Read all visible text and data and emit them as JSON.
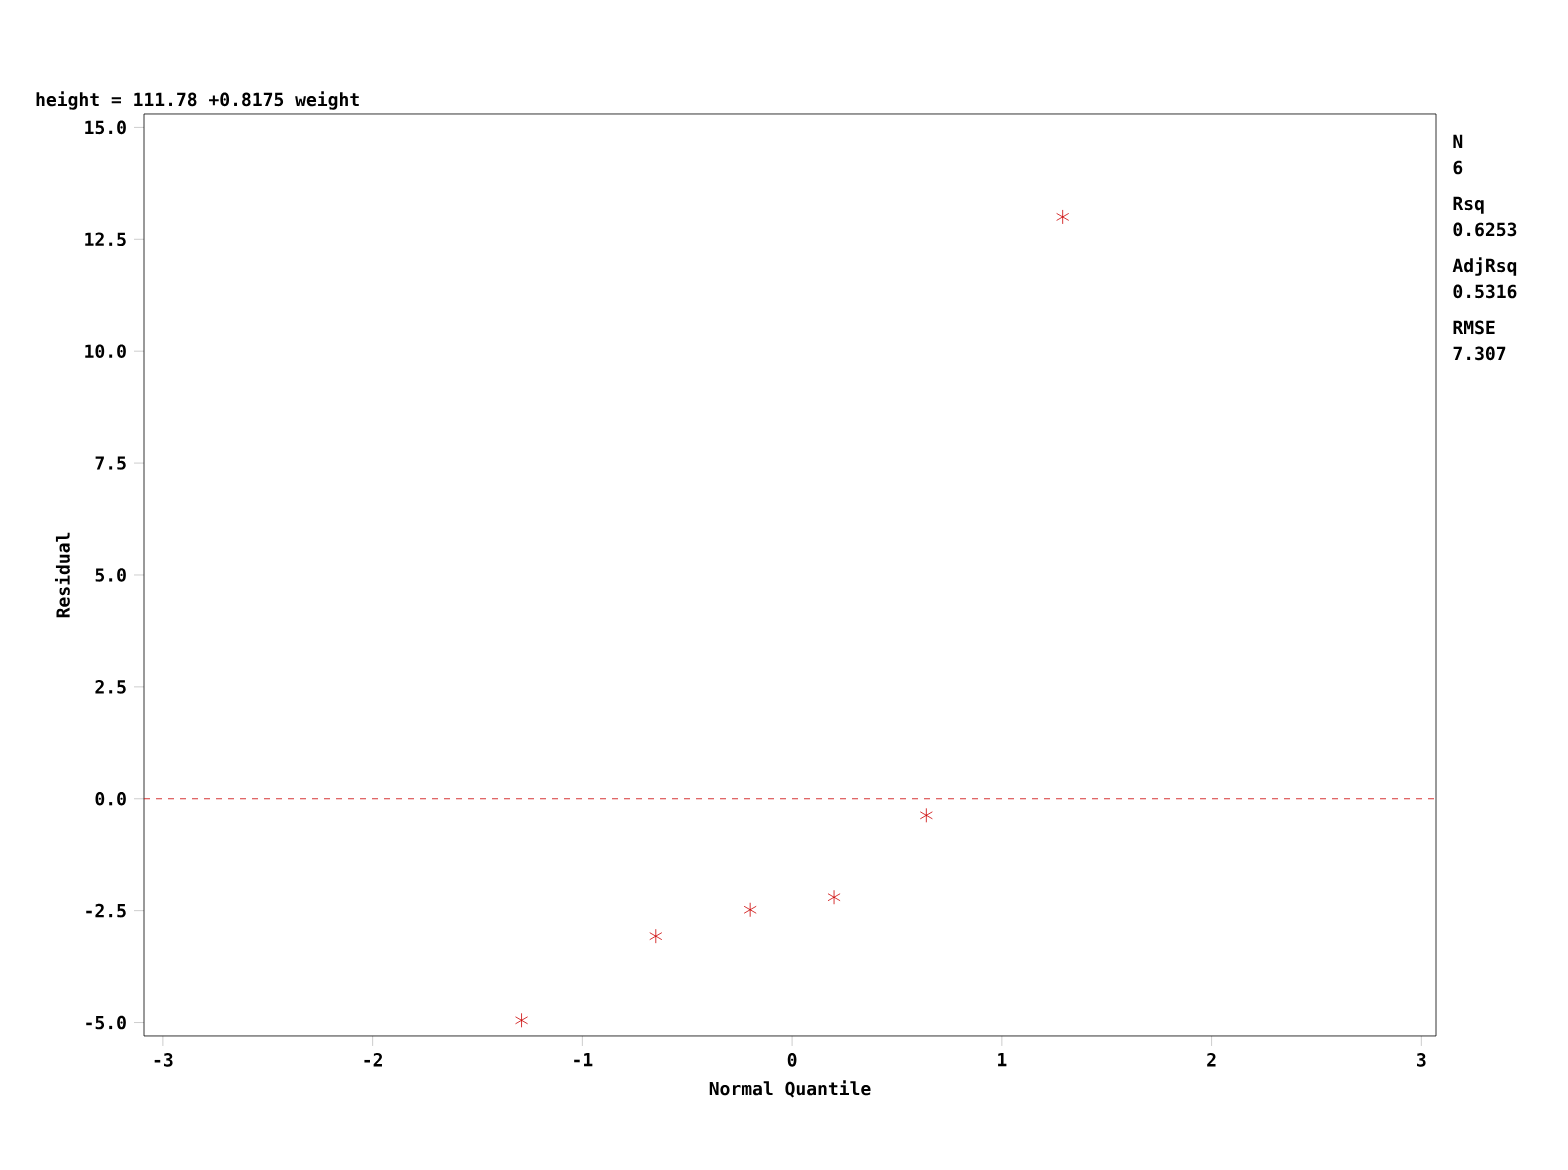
{
  "chart_data": {
    "type": "scatter",
    "title": "height = 111.78 +0.8175 weight",
    "xlabel": "Normal Quantile",
    "ylabel": "Residual",
    "x": [
      -1.29,
      -0.65,
      -0.2,
      0.2,
      0.64,
      1.29
    ],
    "values": [
      -4.95,
      -3.07,
      -2.48,
      -2.2,
      -0.37,
      13.0
    ],
    "color": "#cc0000",
    "marker": "cross",
    "xlim": [
      -3.09,
      3.07
    ],
    "ylim": [
      -5.3,
      15.3
    ],
    "xticks": [
      -3,
      -2,
      -1,
      0,
      1,
      2,
      3
    ],
    "yticks": [
      {
        "value": -5,
        "label": "-5.0"
      },
      {
        "value": -2.5,
        "label": "-2.5"
      },
      {
        "value": 0,
        "label": "0.0"
      },
      {
        "value": 2.5,
        "label": "2.5"
      },
      {
        "value": 5,
        "label": "5.0"
      },
      {
        "value": 7.5,
        "label": "7.5"
      },
      {
        "value": 10,
        "label": "10.0"
      },
      {
        "value": 12.5,
        "label": "12.5"
      },
      {
        "value": 15,
        "label": "15.0"
      }
    ],
    "ref_lines": [
      {
        "axis": "y",
        "value": 0,
        "color": "#cc0000",
        "line_style": "dashed"
      }
    ],
    "annotations": [
      "N",
      "6",
      "Rsq",
      "0.6253",
      "AdjRsq",
      "0.5316",
      "RMSE",
      "7.307"
    ]
  }
}
